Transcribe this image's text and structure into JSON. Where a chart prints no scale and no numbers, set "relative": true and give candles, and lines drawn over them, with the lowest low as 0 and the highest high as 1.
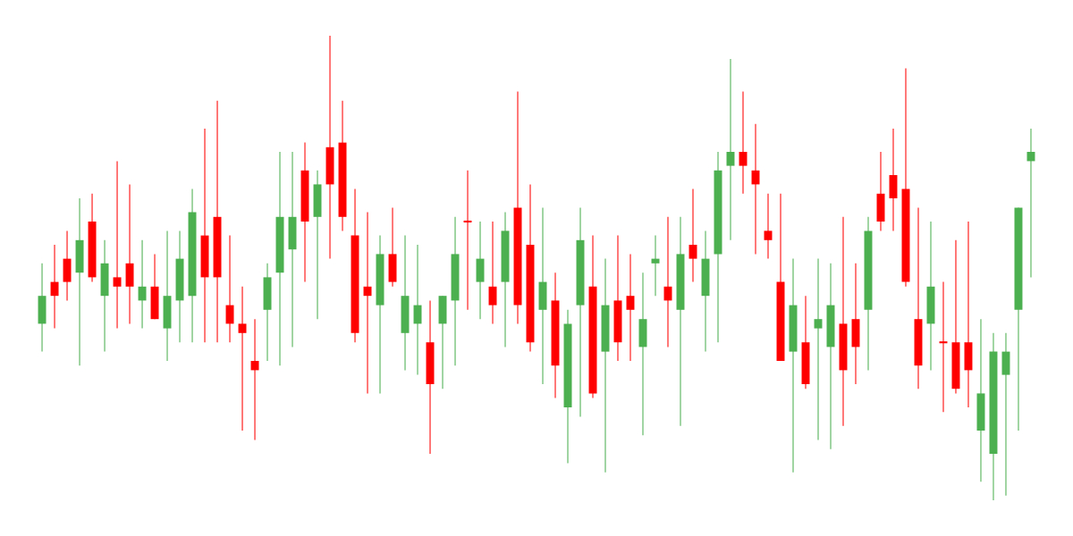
{
  "chart_data": {
    "type": "candlestick",
    "relative": true,
    "categories": [
      null,
      null,
      null,
      null,
      null,
      null,
      null,
      null,
      null,
      null,
      null,
      null,
      null,
      null,
      null,
      null,
      null,
      null,
      null,
      null,
      null,
      null,
      null,
      null,
      null,
      null,
      null,
      null,
      null,
      null,
      null,
      null,
      null,
      null,
      null,
      null,
      null,
      null,
      null,
      null,
      null,
      null,
      null,
      null,
      null,
      null,
      null,
      null,
      null,
      null,
      null,
      null,
      null,
      null,
      null,
      null,
      null,
      null,
      null,
      null,
      null,
      null,
      null,
      null,
      null,
      null,
      null,
      null,
      null,
      null,
      null,
      null,
      null,
      null,
      null,
      null,
      null,
      null,
      null,
      null
    ],
    "ohlc": [
      [
        0.38,
        0.51,
        0.32,
        0.44
      ],
      [
        0.47,
        0.55,
        0.37,
        0.44
      ],
      [
        0.52,
        0.58,
        0.43,
        0.47
      ],
      [
        0.49,
        0.65,
        0.29,
        0.56
      ],
      [
        0.6,
        0.66,
        0.47,
        0.48
      ],
      [
        0.44,
        0.56,
        0.32,
        0.51
      ],
      [
        0.48,
        0.73,
        0.37,
        0.46
      ],
      [
        0.51,
        0.68,
        0.38,
        0.46
      ],
      [
        0.43,
        0.56,
        0.37,
        0.46
      ],
      [
        0.46,
        0.53,
        0.39,
        0.39
      ],
      [
        0.37,
        0.58,
        0.3,
        0.44
      ],
      [
        0.43,
        0.58,
        0.34,
        0.52
      ],
      [
        0.44,
        0.67,
        0.34,
        0.62
      ],
      [
        0.57,
        0.8,
        0.34,
        0.48
      ],
      [
        0.61,
        0.86,
        0.34,
        0.48
      ],
      [
        0.42,
        0.57,
        0.34,
        0.38
      ],
      [
        0.38,
        0.46,
        0.15,
        0.36
      ],
      [
        0.3,
        0.39,
        0.13,
        0.28
      ],
      [
        0.41,
        0.51,
        0.3,
        0.48
      ],
      [
        0.49,
        0.75,
        0.29,
        0.61
      ],
      [
        0.54,
        0.75,
        0.33,
        0.61
      ],
      [
        0.71,
        0.77,
        0.47,
        0.6
      ],
      [
        0.61,
        0.71,
        0.39,
        0.68
      ],
      [
        0.76,
        1.0,
        0.52,
        0.68
      ],
      [
        0.77,
        0.86,
        0.58,
        0.61
      ],
      [
        0.57,
        0.67,
        0.34,
        0.36
      ],
      [
        0.46,
        0.62,
        0.23,
        0.44
      ],
      [
        0.42,
        0.57,
        0.23,
        0.53
      ],
      [
        0.53,
        0.63,
        0.46,
        0.47
      ],
      [
        0.36,
        0.57,
        0.28,
        0.44
      ],
      [
        0.38,
        0.55,
        0.27,
        0.42
      ],
      [
        0.34,
        0.43,
        0.1,
        0.25
      ],
      [
        0.38,
        0.44,
        0.24,
        0.44
      ],
      [
        0.43,
        0.61,
        0.29,
        0.53
      ],
      [
        0.6,
        0.71,
        0.41,
        0.6
      ],
      [
        0.47,
        0.6,
        0.39,
        0.52
      ],
      [
        0.46,
        0.6,
        0.38,
        0.42
      ],
      [
        0.47,
        0.62,
        0.33,
        0.58
      ],
      [
        0.63,
        0.88,
        0.38,
        0.42
      ],
      [
        0.55,
        0.68,
        0.32,
        0.34
      ],
      [
        0.41,
        0.63,
        0.25,
        0.47
      ],
      [
        0.43,
        0.49,
        0.22,
        0.29
      ],
      [
        0.2,
        0.41,
        0.08,
        0.38
      ],
      [
        0.42,
        0.63,
        0.18,
        0.56
      ],
      [
        0.46,
        0.57,
        0.22,
        0.23
      ],
      [
        0.32,
        0.52,
        0.06,
        0.42
      ],
      [
        0.43,
        0.57,
        0.3,
        0.34
      ],
      [
        0.44,
        0.53,
        0.3,
        0.41
      ],
      [
        0.33,
        0.49,
        0.14,
        0.39
      ],
      [
        0.51,
        0.57,
        0.44,
        0.52
      ],
      [
        0.46,
        0.61,
        0.33,
        0.43
      ],
      [
        0.41,
        0.61,
        0.16,
        0.53
      ],
      [
        0.55,
        0.67,
        0.47,
        0.52
      ],
      [
        0.44,
        0.58,
        0.32,
        0.52
      ],
      [
        0.53,
        0.75,
        0.34,
        0.71
      ],
      [
        0.72,
        0.95,
        0.56,
        0.75
      ],
      [
        0.75,
        0.88,
        0.66,
        0.72
      ],
      [
        0.71,
        0.81,
        0.53,
        0.68
      ],
      [
        0.58,
        0.66,
        0.52,
        0.56
      ],
      [
        0.47,
        0.66,
        0.3,
        0.3
      ],
      [
        0.32,
        0.52,
        0.06,
        0.42
      ],
      [
        0.34,
        0.44,
        0.24,
        0.25
      ],
      [
        0.37,
        0.52,
        0.13,
        0.39
      ],
      [
        0.33,
        0.51,
        0.11,
        0.42
      ],
      [
        0.38,
        0.61,
        0.16,
        0.28
      ],
      [
        0.39,
        0.51,
        0.25,
        0.33
      ],
      [
        0.41,
        0.61,
        0.28,
        0.58
      ],
      [
        0.66,
        0.75,
        0.58,
        0.6
      ],
      [
        0.7,
        0.8,
        0.58,
        0.65
      ],
      [
        0.67,
        0.93,
        0.46,
        0.47
      ],
      [
        0.39,
        0.63,
        0.24,
        0.29
      ],
      [
        0.38,
        0.6,
        0.28,
        0.46
      ],
      [
        0.34,
        0.47,
        0.19,
        0.34
      ],
      [
        0.34,
        0.56,
        0.23,
        0.24
      ],
      [
        0.34,
        0.6,
        0.2,
        0.28
      ],
      [
        0.15,
        0.39,
        0.04,
        0.23
      ],
      [
        0.1,
        0.36,
        0.0,
        0.32
      ],
      [
        0.27,
        0.36,
        0.01,
        0.32
      ],
      [
        0.41,
        0.63,
        0.15,
        0.63
      ],
      [
        0.73,
        0.8,
        0.48,
        0.75
      ]
    ],
    "colors": [
      "#4caf50",
      "#ff0000",
      "#ff0000",
      "#4caf50",
      "#ff0000",
      "#4caf50",
      "#ff0000",
      "#ff0000",
      "#4caf50",
      "#ff0000",
      "#4caf50",
      "#4caf50",
      "#4caf50",
      "#ff0000",
      "#ff0000",
      "#ff0000",
      "#ff0000",
      "#ff0000",
      "#4caf50",
      "#4caf50",
      "#4caf50",
      "#ff0000",
      "#4caf50",
      "#ff0000",
      "#ff0000",
      "#ff0000",
      "#ff0000",
      "#4caf50",
      "#ff0000",
      "#4caf50",
      "#4caf50",
      "#ff0000",
      "#4caf50",
      "#4caf50",
      "#ff0000",
      "#4caf50",
      "#ff0000",
      "#4caf50",
      "#ff0000",
      "#ff0000",
      "#4caf50",
      "#ff0000",
      "#4caf50",
      "#4caf50",
      "#ff0000",
      "#4caf50",
      "#ff0000",
      "#ff0000",
      "#4caf50",
      "#4caf50",
      "#ff0000",
      "#4caf50",
      "#ff0000",
      "#4caf50",
      "#4caf50",
      "#4caf50",
      "#ff0000",
      "#ff0000",
      "#ff0000",
      "#ff0000",
      "#4caf50",
      "#ff0000",
      "#4caf50",
      "#4caf50",
      "#ff0000",
      "#ff0000",
      "#4caf50",
      "#ff0000",
      "#ff0000",
      "#ff0000",
      "#ff0000",
      "#4caf50",
      "#ff0000",
      "#ff0000",
      "#ff0000",
      "#4caf50",
      "#4caf50",
      "#4caf50",
      "#4caf50",
      "#4caf50"
    ]
  }
}
